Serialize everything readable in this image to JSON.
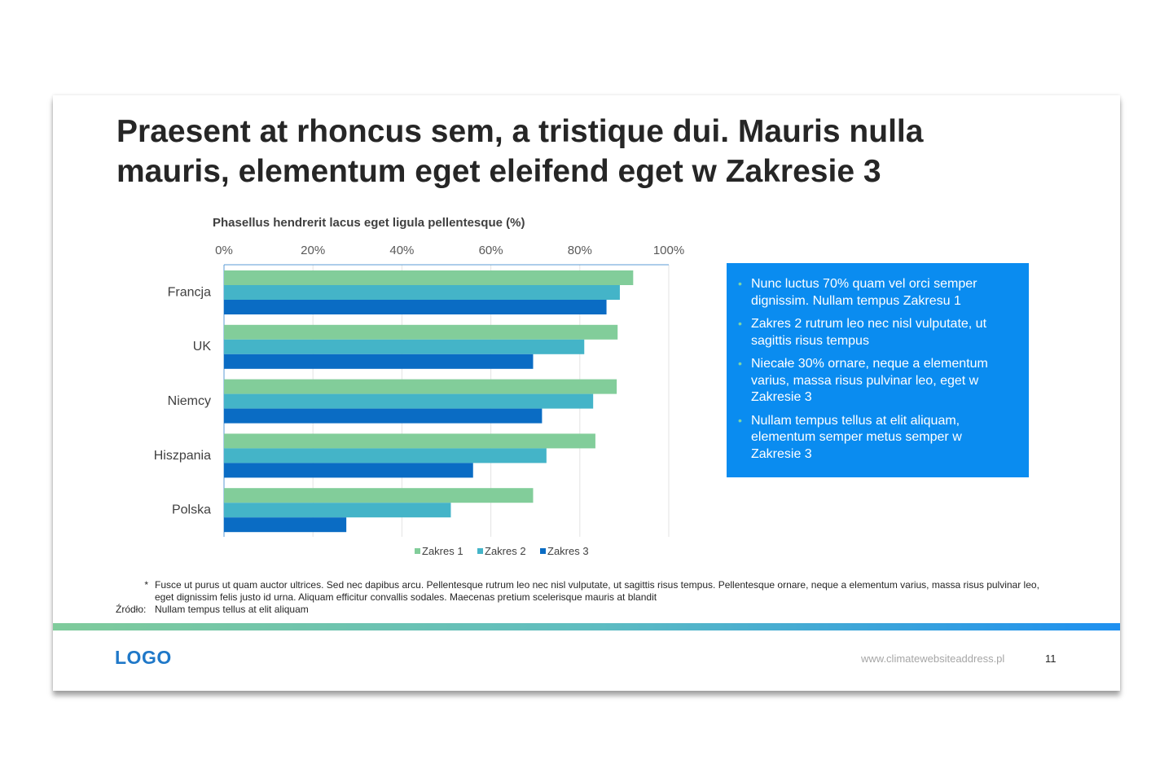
{
  "slide": {
    "title": "Praesent at rhoncus sem, a tristique dui. Mauris nulla mauris, elementum eget eleifend eget w Zakresie 3",
    "info_bullets": [
      "Nunc luctus 70% quam vel orci semper dignissim. Nullam tempus Zakresu 1",
      "Zakres 2 rutrum leo nec nisl vulputate, ut sagittis risus tempus",
      "Niecałe 30% ornare, neque a elementum varius, massa risus pulvinar leo, eget w Zakresie 3",
      "Nullam tempus tellus at elit aliquam, elementum semper metus semper w Zakresie 3"
    ],
    "footnote_marker": "*",
    "footnote_text": "Fusce ut purus ut quam auctor ultrices. Sed nec dapibus arcu. Pellentesque rutrum leo nec nisl vulputate, ut sagittis risus tempus. Pellentesque ornare, neque a elementum varius, massa risus pulvinar leo, eget dignissim felis justo id urna. Aliquam efficitur convallis sodales. Maecenas pretium scelerisque mauris at blandit",
    "source_label": "Źródło:",
    "source_text": "Nullam tempus tellus at elit aliquam",
    "logo": "LOGO",
    "website": "www.climatewebsiteaddress.pl",
    "page_number": "11"
  },
  "colors": {
    "series": [
      "#82CD9A",
      "#44B4C8",
      "#0A6CC4"
    ],
    "axis": "#5B9BD5",
    "box": "#0A8CF0"
  },
  "chart_data": {
    "type": "bar",
    "orientation": "horizontal",
    "title": "Phasellus hendrerit lacus eget ligula pellentesque (%)",
    "categories": [
      "Francja",
      "UK",
      "Niemcy",
      "Hiszpania",
      "Polska"
    ],
    "series": [
      {
        "name": "Zakres 1",
        "values": [
          92,
          88.5,
          88.3,
          83.5,
          69.5
        ]
      },
      {
        "name": "Zakres 2",
        "values": [
          89,
          81,
          83,
          72.5,
          51
        ]
      },
      {
        "name": "Zakres 3",
        "values": [
          86,
          69.5,
          71.5,
          56,
          27.5
        ]
      }
    ],
    "xlim": [
      0,
      100
    ],
    "x_ticks": [
      "0%",
      "20%",
      "40%",
      "60%",
      "80%",
      "100%"
    ],
    "x_tick_values": [
      0,
      20,
      40,
      60,
      80,
      100
    ],
    "axis_position": "top",
    "grid": true,
    "legend": "bottom"
  }
}
